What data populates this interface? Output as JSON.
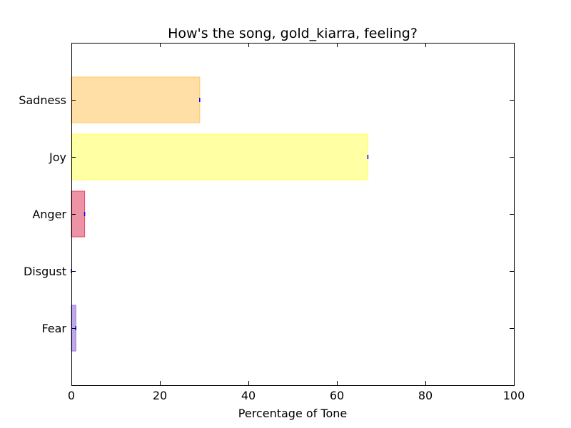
{
  "chart_data": {
    "type": "bar",
    "orientation": "horizontal",
    "title": "How's the song, gold_kiarra, feeling?",
    "xlabel": "Percentage of Tone",
    "ylabel": "",
    "xlim": [
      0,
      100
    ],
    "xticks": [
      0,
      20,
      40,
      60,
      80,
      100
    ],
    "grid": false,
    "categories": [
      "Fear",
      "Disgust",
      "Anger",
      "Joy",
      "Sadness"
    ],
    "values": [
      1,
      0,
      3,
      67,
      29
    ],
    "colors": [
      "#9370DB",
      "#2E8B57",
      "#E34A6A",
      "#FFFF66",
      "#FFC96B"
    ],
    "error_marker_color": "#0000FF"
  }
}
